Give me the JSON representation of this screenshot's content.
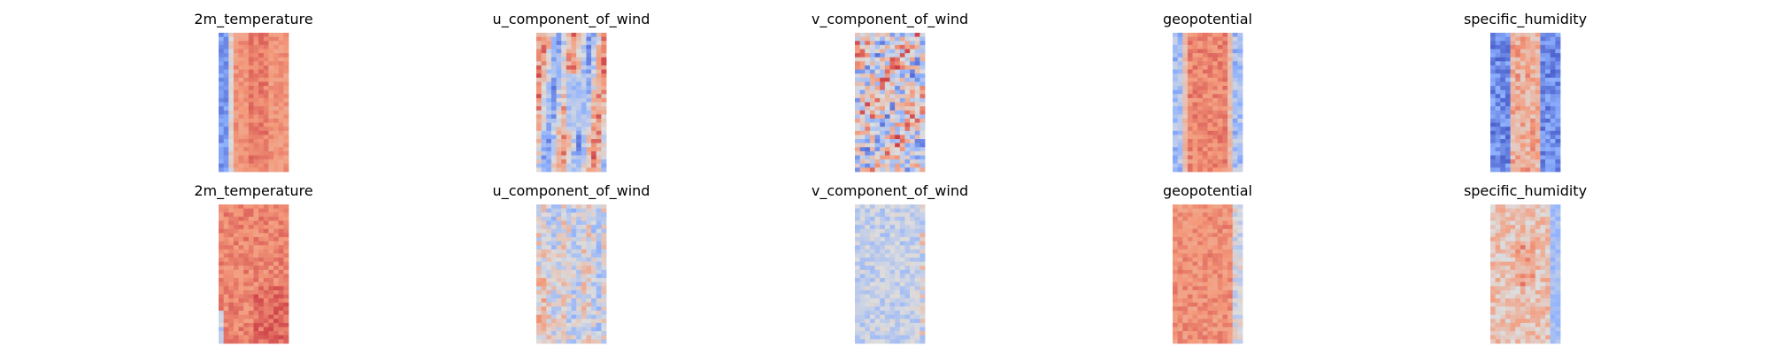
{
  "chart_data": {
    "type": "heatmap",
    "colormap": "coolwarm",
    "colormap_stops": [
      "#3b4cc0",
      "#8db0fe",
      "#dddddd",
      "#f49a7b",
      "#b40426"
    ],
    "axes_visible": false,
    "colorbar": false,
    "rows": 2,
    "columns": 5,
    "panels": [
      {
        "title": "2m_temperature",
        "row": 1,
        "col": 1,
        "pattern": "warm-band-cold-left"
      },
      {
        "title": "u_component_of_wind",
        "row": 1,
        "col": 2,
        "pattern": "streaky-mixed"
      },
      {
        "title": "v_component_of_wind",
        "row": 1,
        "col": 3,
        "pattern": "noisy-mixed"
      },
      {
        "title": "geopotential",
        "row": 1,
        "col": 4,
        "pattern": "warm-band-cool-edges"
      },
      {
        "title": "specific_humidity",
        "row": 1,
        "col": 5,
        "pattern": "cold-edges-warm-center"
      },
      {
        "title": "2m_temperature",
        "row": 2,
        "col": 1,
        "pattern": "mostly-warm"
      },
      {
        "title": "u_component_of_wind",
        "row": 2,
        "col": 2,
        "pattern": "faint-mixed-streaks"
      },
      {
        "title": "v_component_of_wind",
        "row": 2,
        "col": 3,
        "pattern": "faint-neutral"
      },
      {
        "title": "geopotential",
        "row": 2,
        "col": 4,
        "pattern": "mostly-warm-right-cool"
      },
      {
        "title": "specific_humidity",
        "row": 2,
        "col": 5,
        "pattern": "neutral-warm-patches"
      }
    ]
  }
}
